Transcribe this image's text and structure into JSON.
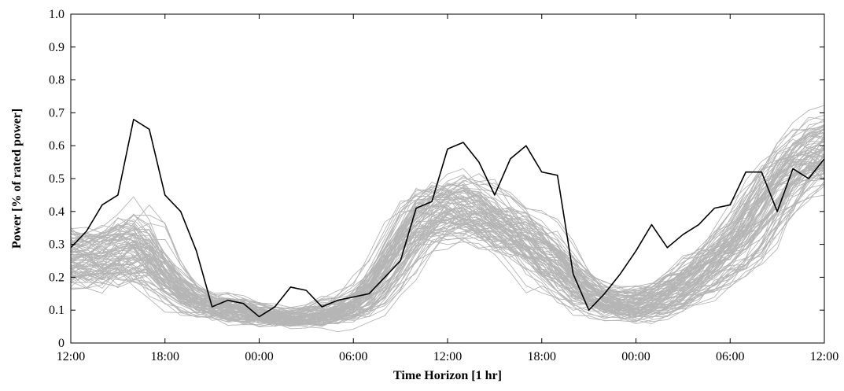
{
  "chart_data": {
    "type": "line",
    "xlabel": "Time Horizon [1 hr]",
    "ylabel": "Power [% of rated power]",
    "x_ticks": [
      "12:00",
      "18:00",
      "00:00",
      "06:00",
      "12:00",
      "18:00",
      "00:00",
      "06:00",
      "12:00"
    ],
    "x_tick_hours": [
      0,
      6,
      12,
      18,
      24,
      30,
      36,
      42,
      48
    ],
    "xlim": [
      0,
      48
    ],
    "y_ticks": [
      "0",
      "0.1",
      "0.2",
      "0.3",
      "0.4",
      "0.5",
      "0.6",
      "0.7",
      "0.8",
      "0.9",
      "1.0"
    ],
    "ylim": [
      0,
      1.0
    ],
    "grid": false,
    "colors": {
      "highlight": "#000000",
      "scenarios": "#b5b5b5"
    },
    "highlighted_series": {
      "values": [
        0.29,
        0.34,
        0.42,
        0.45,
        0.68,
        0.65,
        0.45,
        0.4,
        0.28,
        0.11,
        0.13,
        0.12,
        0.08,
        0.11,
        0.17,
        0.16,
        0.11,
        0.13,
        0.14,
        0.15,
        0.2,
        0.25,
        0.41,
        0.43,
        0.59,
        0.61,
        0.55,
        0.45,
        0.56,
        0.6,
        0.52,
        0.51,
        0.21,
        0.1,
        0.15,
        0.21,
        0.28,
        0.36,
        0.29,
        0.33,
        0.36,
        0.41,
        0.42,
        0.52,
        0.52,
        0.4,
        0.53,
        0.5,
        0.56
      ]
    },
    "scenario_band": {
      "description": "many gray scenario series following the mean profile",
      "count": 90,
      "mean": [
        0.27,
        0.26,
        0.27,
        0.28,
        0.3,
        0.27,
        0.21,
        0.16,
        0.13,
        0.11,
        0.11,
        0.1,
        0.09,
        0.08,
        0.08,
        0.08,
        0.09,
        0.1,
        0.12,
        0.16,
        0.23,
        0.3,
        0.37,
        0.4,
        0.42,
        0.42,
        0.4,
        0.37,
        0.35,
        0.32,
        0.28,
        0.24,
        0.19,
        0.15,
        0.13,
        0.12,
        0.12,
        0.13,
        0.15,
        0.18,
        0.22,
        0.26,
        0.3,
        0.35,
        0.42,
        0.49,
        0.54,
        0.58,
        0.6
      ],
      "spread": [
        0.09,
        0.09,
        0.09,
        0.1,
        0.11,
        0.1,
        0.07,
        0.05,
        0.04,
        0.04,
        0.04,
        0.04,
        0.03,
        0.03,
        0.03,
        0.03,
        0.04,
        0.04,
        0.05,
        0.06,
        0.07,
        0.08,
        0.09,
        0.09,
        0.09,
        0.09,
        0.09,
        0.09,
        0.09,
        0.09,
        0.09,
        0.08,
        0.07,
        0.06,
        0.05,
        0.05,
        0.05,
        0.05,
        0.06,
        0.06,
        0.07,
        0.08,
        0.08,
        0.09,
        0.1,
        0.1,
        0.1,
        0.1,
        0.1
      ]
    }
  }
}
